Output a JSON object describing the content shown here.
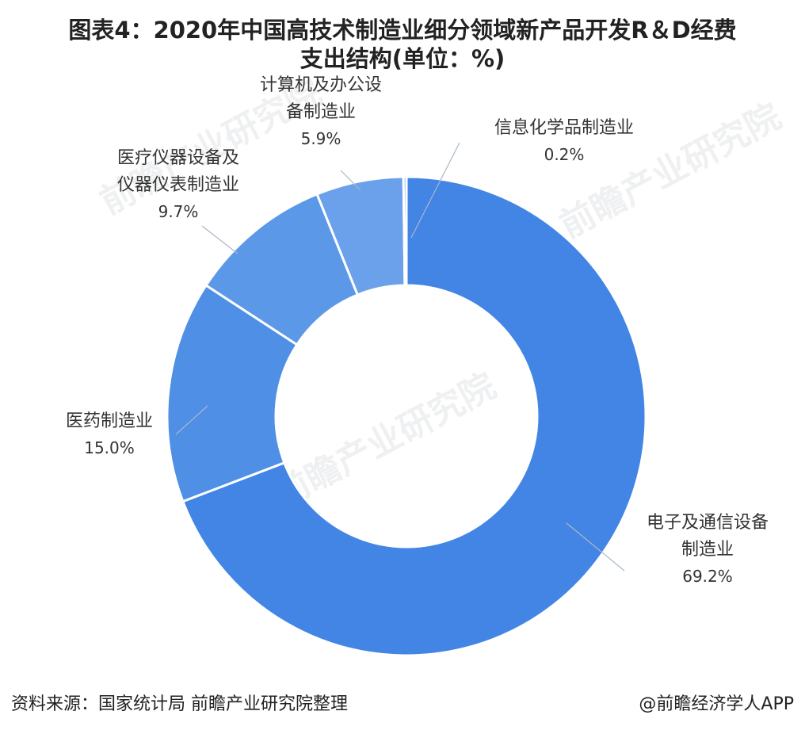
{
  "title_line1": "图表4：2020年中国高技术制造业细分领域新产品开发R＆D经费",
  "title_line2": "支出结构(单位：%)",
  "colors": {
    "slices": [
      "#4285e4",
      "#4f8fe6",
      "#5c98e8",
      "#6aa1ea",
      "#78abec"
    ],
    "separator": "#ffffff",
    "leader": "#a9b8c8"
  },
  "chart_data": {
    "type": "pie",
    "donut": true,
    "categories": [
      "电子及通信设备制造业",
      "医药制造业",
      "医疗仪器设备及仪器仪表制造业",
      "计算机及办公设备制造业",
      "信息化学品制造业"
    ],
    "values": [
      69.2,
      15.0,
      9.7,
      5.9,
      0.2
    ],
    "labels": [
      {
        "lines": [
          "电子及通信设备",
          "制造业"
        ],
        "pct": "69.2%"
      },
      {
        "lines": [
          "医药制造业"
        ],
        "pct": "15.0%"
      },
      {
        "lines": [
          "医疗仪器设备及",
          "仪器仪表制造业"
        ],
        "pct": "9.7%"
      },
      {
        "lines": [
          "计算机及办公设",
          "备制造业"
        ],
        "pct": "5.9%"
      },
      {
        "lines": [
          "信息化学品制造业"
        ],
        "pct": "0.2%"
      }
    ]
  },
  "footer": {
    "source": "资料来源：国家统计局 前瞻产业研究院整理",
    "credit": "@前瞻经济学人APP"
  },
  "watermark": "前瞻产业研究院"
}
